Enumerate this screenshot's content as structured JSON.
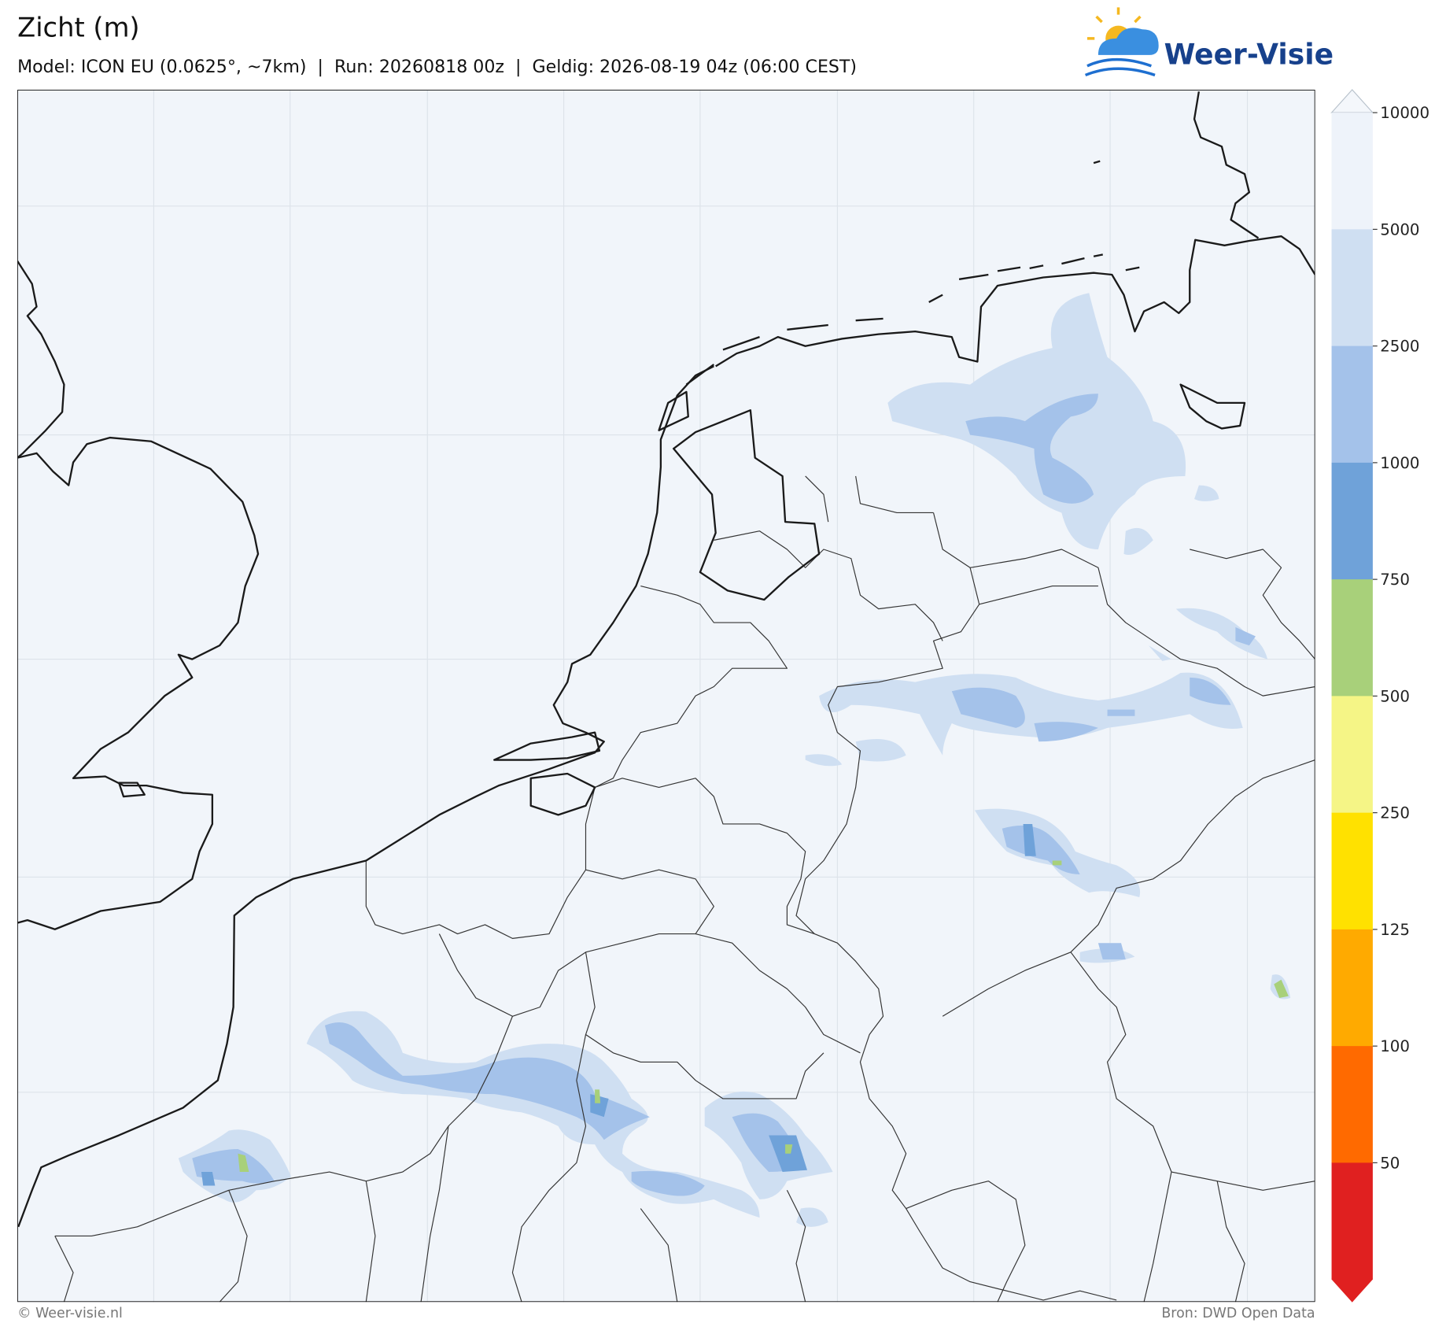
{
  "header": {
    "title": "Zicht (m)",
    "subtitle": "Model: ICON EU (0.0625°, ~7km)  |  Run: 20260818 00z  |  Geldig: 2026-08-19 04z (06:00 CEST)",
    "logo": "Weer-Visie"
  },
  "colorbar": {
    "ticks": [
      10000,
      5000,
      2500,
      1000,
      750,
      500,
      250,
      125,
      100,
      50
    ],
    "colors": [
      "#f4f7fb",
      "#eef3fa",
      "#cfdff2",
      "#a4c2ea",
      "#6fa2d9",
      "#a8d07a",
      "#f5f586",
      "#ffe100",
      "#ffaa00",
      "#ff6a00",
      "#e02020"
    ]
  },
  "footer": {
    "copyright": "© Weer-visie.nl",
    "source": "Bron: DWD Open Data"
  }
}
